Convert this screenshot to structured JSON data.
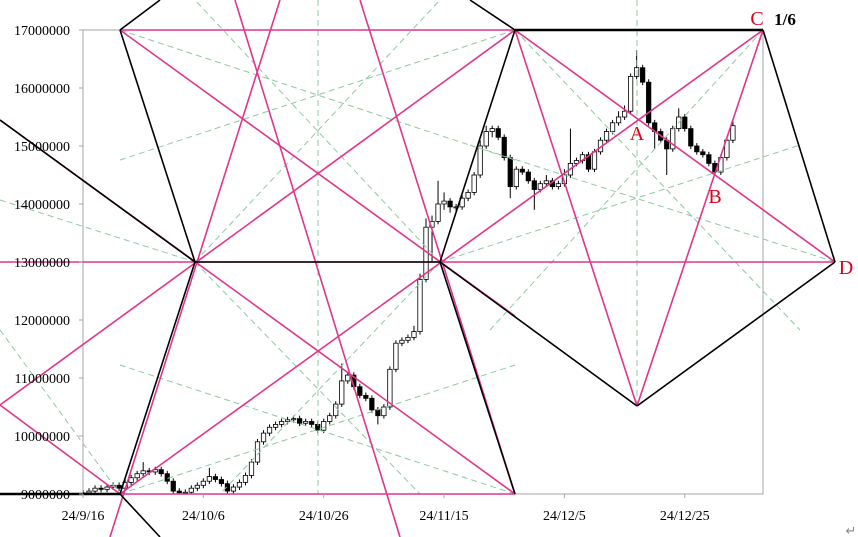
{
  "chart_data": {
    "type": "candlestick",
    "x": [
      "24/9/16",
      "24/9/17",
      "24/9/18",
      "24/9/19",
      "24/9/20",
      "24/9/21",
      "24/9/22",
      "24/9/23",
      "24/9/24",
      "24/9/25",
      "24/9/26",
      "24/9/27",
      "24/9/28",
      "24/9/29",
      "24/9/30",
      "24/10/1",
      "24/10/2",
      "24/10/3",
      "24/10/4",
      "24/10/5",
      "24/10/6",
      "24/10/7",
      "24/10/8",
      "24/10/9",
      "24/10/10",
      "24/10/11",
      "24/10/12",
      "24/10/13",
      "24/10/14",
      "24/10/15",
      "24/10/16",
      "24/10/17",
      "24/10/18",
      "24/10/19",
      "24/10/20",
      "24/10/21",
      "24/10/22",
      "24/10/23",
      "24/10/24",
      "24/10/25",
      "24/10/26",
      "24/10/27",
      "24/10/28",
      "24/10/29",
      "24/10/30",
      "24/10/31",
      "24/11/1",
      "24/11/2",
      "24/11/3",
      "24/11/4",
      "24/11/5",
      "24/11/6",
      "24/11/7",
      "24/11/8",
      "24/11/9",
      "24/11/10",
      "24/11/11",
      "24/11/12",
      "24/11/13",
      "24/11/14",
      "24/11/15",
      "24/11/16",
      "24/11/17",
      "24/11/18",
      "24/11/19",
      "24/11/20",
      "24/11/21",
      "24/11/22",
      "24/11/23",
      "24/11/24",
      "24/11/25",
      "24/11/26",
      "24/11/27",
      "24/11/28",
      "24/11/29",
      "24/11/30",
      "24/12/1",
      "24/12/2",
      "24/12/3",
      "24/12/4",
      "24/12/5",
      "24/12/6",
      "24/12/7",
      "24/12/8",
      "24/12/9",
      "24/12/10",
      "24/12/11",
      "24/12/12",
      "24/12/13",
      "24/12/14",
      "24/12/15",
      "24/12/16",
      "24/12/17",
      "24/12/18",
      "24/12/19",
      "24/12/20",
      "24/12/21",
      "24/12/22",
      "24/12/23",
      "24/12/24",
      "24/12/25",
      "24/12/26",
      "24/12/27",
      "24/12/28",
      "24/12/29",
      "24/12/30",
      "24/12/31",
      "25/1/1",
      "25/1/2"
    ],
    "open": [
      9000000,
      9020000,
      9050000,
      9100000,
      9080000,
      9120000,
      9150000,
      9100000,
      9200000,
      9280000,
      9350000,
      9400000,
      9380000,
      9420000,
      9350000,
      9220000,
      9050000,
      9020000,
      9030000,
      9100000,
      9150000,
      9220000,
      9300000,
      9250000,
      9180000,
      9050000,
      9120000,
      9200000,
      9320000,
      9550000,
      9900000,
      10050000,
      10150000,
      10200000,
      10250000,
      10280000,
      10300000,
      10220000,
      10250000,
      10200000,
      10100000,
      10250000,
      10350000,
      10550000,
      10950000,
      11050000,
      10850000,
      10700000,
      10650000,
      10450000,
      10350000,
      10500000,
      11150000,
      11600000,
      11650000,
      11700000,
      11800000,
      12700000,
      13600000,
      13700000,
      14000000,
      14050000,
      13950000,
      13950000,
      14100000,
      14200000,
      14500000,
      15000000,
      15250000,
      15300000,
      15150000,
      14800000,
      14300000,
      14600000,
      14550000,
      14400000,
      14250000,
      14350000,
      14400000,
      14300000,
      14350000,
      14500000,
      14700000,
      14750000,
      14850000,
      14600000,
      14900000,
      15100000,
      15250000,
      15400000,
      15500000,
      15600000,
      16200000,
      16350000,
      16100000,
      15400000,
      15250000,
      15100000,
      14950000,
      15300000,
      15500000,
      15300000,
      15000000,
      14900000,
      14850000,
      14700000,
      14550000,
      14800000,
      15100000
    ],
    "high": [
      9070000,
      9100000,
      9150000,
      9150000,
      9170000,
      9200000,
      9200000,
      9250000,
      9330000,
      9400000,
      9550000,
      9450000,
      9470000,
      9470000,
      9400000,
      9270000,
      9100000,
      9080000,
      9150000,
      9200000,
      9270000,
      9450000,
      9350000,
      9300000,
      9230000,
      9170000,
      9250000,
      9370000,
      9600000,
      9950000,
      10100000,
      10200000,
      10250000,
      10300000,
      10330000,
      10350000,
      10350000,
      10300000,
      10300000,
      10250000,
      10300000,
      10400000,
      10600000,
      11250000,
      11100000,
      11100000,
      10900000,
      10750000,
      10700000,
      10500000,
      10550000,
      11200000,
      11650000,
      11700000,
      11750000,
      11900000,
      12800000,
      13750000,
      13800000,
      14400000,
      14200000,
      14100000,
      14000000,
      14150000,
      14250000,
      14550000,
      15100000,
      15350000,
      15350000,
      15350000,
      15200000,
      14850000,
      14650000,
      14650000,
      14600000,
      14450000,
      14400000,
      14500000,
      14450000,
      14400000,
      14600000,
      15300000,
      14800000,
      14900000,
      14900000,
      14950000,
      15150000,
      15300000,
      15450000,
      15600000,
      15700000,
      16250000,
      16650000,
      16400000,
      16150000,
      15450000,
      15300000,
      15150000,
      15350000,
      15650000,
      15550000,
      15350000,
      15050000,
      14950000,
      14900000,
      14750000,
      14850000,
      15150000,
      15450000
    ],
    "low": [
      8950000,
      8970000,
      9000000,
      9030000,
      9030000,
      9070000,
      9050000,
      9050000,
      9150000,
      9230000,
      9300000,
      9330000,
      9330000,
      9300000,
      9170000,
      9000000,
      8970000,
      8970000,
      8980000,
      9050000,
      9100000,
      9170000,
      9200000,
      9130000,
      9000000,
      9000000,
      9070000,
      9150000,
      9270000,
      9500000,
      9850000,
      10000000,
      10100000,
      10150000,
      10200000,
      10230000,
      10170000,
      10170000,
      10150000,
      10050000,
      10050000,
      10200000,
      10300000,
      10500000,
      10900000,
      10800000,
      10650000,
      10600000,
      10400000,
      10200000,
      10300000,
      10450000,
      11100000,
      11550000,
      11600000,
      11650000,
      11750000,
      12650000,
      13000000,
      13650000,
      13900000,
      13850000,
      13850000,
      13900000,
      14050000,
      14150000,
      14450000,
      14950000,
      15150000,
      15100000,
      14750000,
      14100000,
      14250000,
      14500000,
      14350000,
      13900000,
      14200000,
      14300000,
      14250000,
      14250000,
      14300000,
      14450000,
      14650000,
      14700000,
      14550000,
      14550000,
      14850000,
      15050000,
      15200000,
      15350000,
      15450000,
      15550000,
      16150000,
      16050000,
      15350000,
      14950000,
      15050000,
      14500000,
      14900000,
      15250000,
      15250000,
      14950000,
      14850000,
      14800000,
      14650000,
      14500000,
      14500000,
      14750000,
      15050000
    ],
    "close": [
      9020000,
      9050000,
      9100000,
      9080000,
      9120000,
      9150000,
      9100000,
      9200000,
      9280000,
      9350000,
      9400000,
      9380000,
      9420000,
      9350000,
      9220000,
      9050000,
      9020000,
      9030000,
      9100000,
      9150000,
      9220000,
      9300000,
      9250000,
      9180000,
      9050000,
      9120000,
      9200000,
      9320000,
      9550000,
      9900000,
      10050000,
      10150000,
      10200000,
      10250000,
      10280000,
      10300000,
      10220000,
      10250000,
      10200000,
      10100000,
      10250000,
      10350000,
      10550000,
      10950000,
      11050000,
      10850000,
      10700000,
      10650000,
      10450000,
      10350000,
      10500000,
      11150000,
      11600000,
      11650000,
      11700000,
      11800000,
      12700000,
      13600000,
      13700000,
      14000000,
      14050000,
      13950000,
      13950000,
      14100000,
      14200000,
      14500000,
      15000000,
      15250000,
      15300000,
      15150000,
      14800000,
      14300000,
      14600000,
      14550000,
      14400000,
      14250000,
      14350000,
      14400000,
      14300000,
      14350000,
      14500000,
      14700000,
      14750000,
      14850000,
      14600000,
      14900000,
      15100000,
      15250000,
      15400000,
      15500000,
      15600000,
      16200000,
      16350000,
      16100000,
      15400000,
      15250000,
      15100000,
      14950000,
      15300000,
      15500000,
      15300000,
      15000000,
      14900000,
      14850000,
      14700000,
      14550000,
      14800000,
      15100000,
      15350000
    ],
    "xlim": [
      "24/9/16",
      "25/1/7"
    ],
    "xticks": [
      "24/9/16",
      "24/10/6",
      "24/10/26",
      "24/11/15",
      "24/12/5",
      "24/12/25"
    ],
    "ylim": [
      9000000,
      17000000
    ],
    "yticks": [
      9000000,
      10000000,
      11000000,
      12000000,
      13000000,
      14000000,
      15000000,
      16000000,
      17000000
    ],
    "up_color": "#ffffff",
    "down_color": "#000000",
    "annotations": [
      "A",
      "B",
      "C",
      "D",
      "1/6"
    ],
    "return_mark": "↵"
  }
}
